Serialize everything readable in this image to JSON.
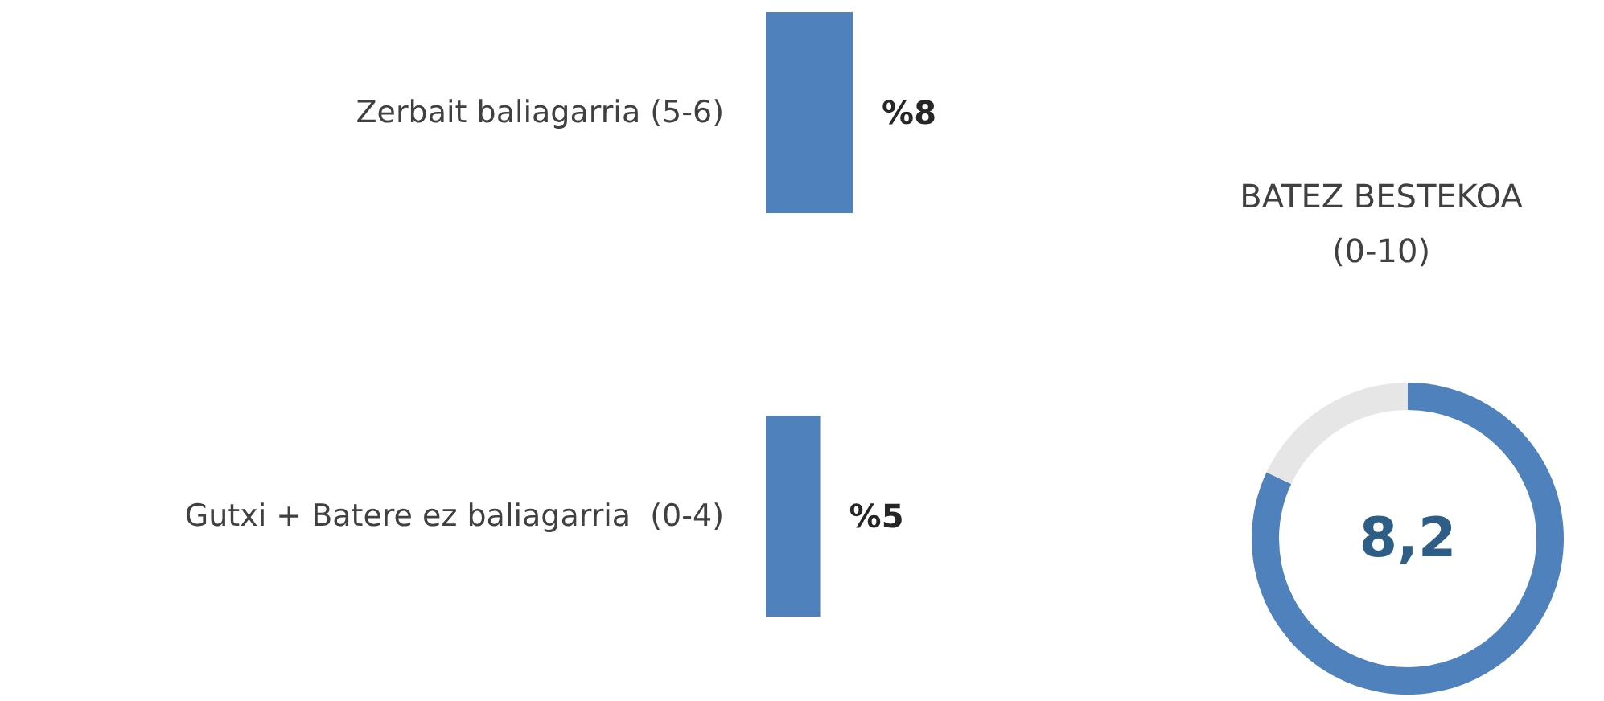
{
  "chart_data": [
    {
      "type": "bar",
      "orientation": "horizontal",
      "categories": [
        "Zerbait baliagarria (5-6)",
        "Gutxi + Batere ez baliagarria  (0-4)"
      ],
      "values": [
        8,
        5
      ],
      "value_labels": [
        "%8",
        "%5"
      ],
      "color": "#4f81bd"
    },
    {
      "type": "donut",
      "title": "BATEZ BESTEKOA\n(0-10)",
      "categories": [
        null,
        null
      ],
      "values": [
        82,
        18
      ],
      "colors": [
        "#4f81bd",
        "#e6e6e6"
      ],
      "annotations": [
        "8,2"
      ]
    }
  ]
}
